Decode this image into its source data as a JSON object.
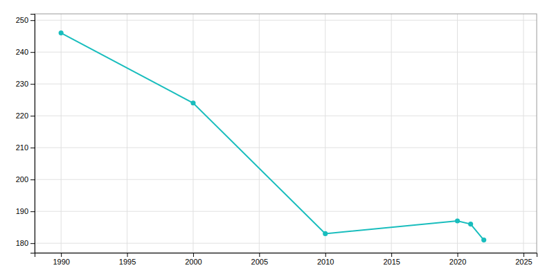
{
  "chart_data": {
    "type": "line",
    "x": [
      1990,
      2000,
      2010,
      2020,
      2021,
      2022
    ],
    "values": [
      246,
      224,
      183,
      187,
      186,
      181
    ],
    "color": "#18BDBD",
    "marker": "circle",
    "xlim": [
      1988,
      2026
    ],
    "ylim": [
      177,
      252
    ],
    "xticks": [
      1990,
      1995,
      2000,
      2005,
      2010,
      2015,
      2020,
      2025
    ],
    "yticks": [
      180,
      190,
      200,
      210,
      220,
      230,
      240,
      250
    ],
    "grid": true
  }
}
